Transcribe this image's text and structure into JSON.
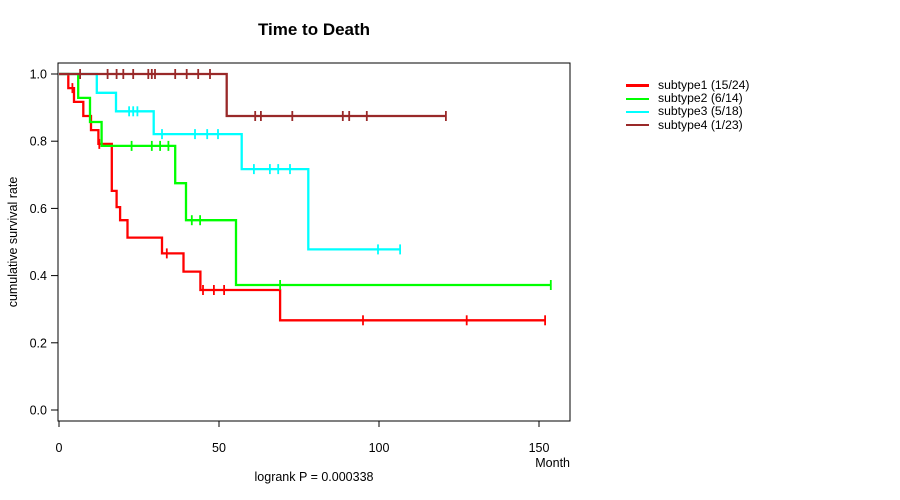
{
  "title": "Time to Death",
  "chart_data": {
    "type": "line",
    "variant": "kaplan_meier_step_survival",
    "title": "Time to Death",
    "xlabel": "Month",
    "ylabel": "cumulative survival rate",
    "annotation": "logrank P = 0.000338",
    "xlim": [
      0,
      160
    ],
    "ylim": [
      0.0,
      1.0
    ],
    "xticks": [
      0,
      50,
      100,
      150
    ],
    "xticklabels": [
      "0",
      "50",
      "100",
      "150"
    ],
    "yticks": [
      0.0,
      0.2,
      0.4,
      0.6,
      0.8,
      1.0
    ],
    "yticklabels": [
      "0.0",
      "0.2",
      "0.4",
      "0.6",
      "0.8",
      "1.0"
    ],
    "grid": false,
    "legend_position": "right-outside",
    "series": [
      {
        "name": "subtype1",
        "label": "subtype1 (15/24)",
        "color": "#FF0000",
        "events": 15,
        "n": 24,
        "steps": [
          [
            2.9,
            0.958
          ],
          [
            4.7,
            0.917
          ],
          [
            7.6,
            0.875
          ],
          [
            10.0,
            0.833
          ],
          [
            12.3,
            0.792
          ],
          [
            16.5,
            0.652
          ],
          [
            18.0,
            0.604
          ],
          [
            19.1,
            0.565
          ],
          [
            21.4,
            0.513
          ],
          [
            32.2,
            0.466
          ],
          [
            38.9,
            0.412
          ],
          [
            44.2,
            0.357
          ],
          [
            69.1,
            0.267
          ]
        ],
        "censor_marks": [
          [
            4.2,
            0.958
          ],
          [
            12.6,
            0.792
          ],
          [
            33.7,
            0.466
          ],
          [
            45.0,
            0.357
          ],
          [
            48.4,
            0.357
          ],
          [
            51.6,
            0.357
          ],
          [
            95.0,
            0.267
          ],
          [
            127.4,
            0.267
          ],
          [
            151.9,
            0.267
          ]
        ],
        "end_time": 151.9
      },
      {
        "name": "subtype2",
        "label": "subtype2 (6/14)",
        "color": "#00FF00",
        "events": 6,
        "n": 14,
        "steps": [
          [
            6.0,
            0.929
          ],
          [
            9.7,
            0.857
          ],
          [
            13.3,
            0.786
          ],
          [
            36.3,
            0.675
          ],
          [
            39.7,
            0.565
          ],
          [
            55.3,
            0.372
          ]
        ],
        "censor_marks": [
          [
            22.7,
            0.786
          ],
          [
            29.0,
            0.786
          ],
          [
            31.6,
            0.786
          ],
          [
            34.2,
            0.786
          ],
          [
            41.5,
            0.565
          ],
          [
            44.1,
            0.565
          ],
          [
            69.1,
            0.372
          ],
          [
            153.7,
            0.372
          ]
        ],
        "end_time": 153.7
      },
      {
        "name": "subtype3",
        "label": "subtype3 (5/18)",
        "color": "#00FFFF",
        "events": 5,
        "n": 18,
        "steps": [
          [
            11.8,
            0.944
          ],
          [
            17.8,
            0.889
          ],
          [
            29.6,
            0.821
          ],
          [
            57.1,
            0.717
          ],
          [
            77.9,
            0.478
          ]
        ],
        "censor_marks": [
          [
            21.9,
            0.889
          ],
          [
            23.2,
            0.889
          ],
          [
            24.5,
            0.889
          ],
          [
            32.2,
            0.821
          ],
          [
            42.5,
            0.821
          ],
          [
            46.3,
            0.821
          ],
          [
            49.7,
            0.821
          ],
          [
            60.9,
            0.717
          ],
          [
            65.9,
            0.717
          ],
          [
            68.5,
            0.717
          ],
          [
            72.2,
            0.717
          ],
          [
            99.7,
            0.478
          ],
          [
            106.6,
            0.478
          ]
        ],
        "end_time": 106.6
      },
      {
        "name": "subtype4",
        "label": "subtype4 (1/23)",
        "color": "#992929",
        "events": 1,
        "n": 23,
        "steps": [
          [
            52.4,
            0.875
          ]
        ],
        "censor_marks": [
          [
            6.6,
            1.0
          ],
          [
            15.2,
            1.0
          ],
          [
            18.0,
            1.0
          ],
          [
            20.1,
            1.0
          ],
          [
            23.2,
            1.0
          ],
          [
            27.9,
            1.0
          ],
          [
            29.0,
            1.0
          ],
          [
            30.0,
            1.0
          ],
          [
            36.3,
            1.0
          ],
          [
            39.9,
            1.0
          ],
          [
            43.5,
            1.0
          ],
          [
            47.2,
            1.0
          ],
          [
            61.3,
            0.875
          ],
          [
            63.1,
            0.875
          ],
          [
            72.9,
            0.875
          ],
          [
            88.7,
            0.875
          ],
          [
            90.7,
            0.875
          ],
          [
            96.2,
            0.875
          ],
          [
            120.9,
            0.875
          ]
        ],
        "end_time": 120.9
      }
    ]
  }
}
